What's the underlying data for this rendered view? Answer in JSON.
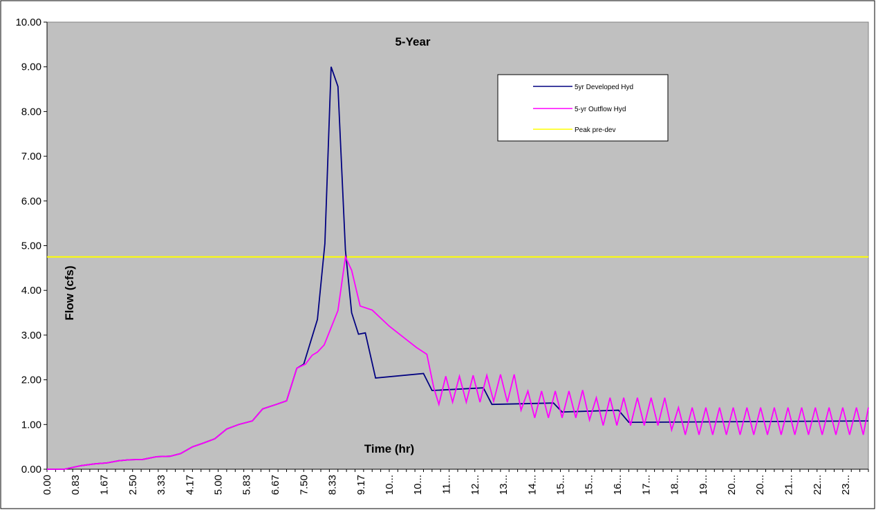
{
  "chart_data": {
    "type": "line",
    "title": "5-Year",
    "xlabel": "Time (hr)",
    "ylabel": "Flow (cfs)",
    "ylim": [
      0,
      10
    ],
    "yticks": [
      "0.00",
      "1.00",
      "2.00",
      "3.00",
      "4.00",
      "5.00",
      "6.00",
      "7.00",
      "8.00",
      "9.00",
      "10.00"
    ],
    "xlim": [
      0,
      24
    ],
    "xticks": [
      {
        "x": 0.0,
        "label": "0.00"
      },
      {
        "x": 0.83,
        "label": "0.83"
      },
      {
        "x": 1.67,
        "label": "1.67"
      },
      {
        "x": 2.5,
        "label": "2.50"
      },
      {
        "x": 3.33,
        "label": "3.33"
      },
      {
        "x": 4.17,
        "label": "4.17"
      },
      {
        "x": 5.0,
        "label": "5.00"
      },
      {
        "x": 5.83,
        "label": "5.83"
      },
      {
        "x": 6.67,
        "label": "6.67"
      },
      {
        "x": 7.5,
        "label": "7.50"
      },
      {
        "x": 8.33,
        "label": "8.33"
      },
      {
        "x": 9.17,
        "label": "9.17"
      },
      {
        "x": 10.0,
        "label": "10..."
      },
      {
        "x": 10.83,
        "label": "10..."
      },
      {
        "x": 11.67,
        "label": "11..."
      },
      {
        "x": 12.5,
        "label": "12..."
      },
      {
        "x": 13.33,
        "label": "13..."
      },
      {
        "x": 14.17,
        "label": "14..."
      },
      {
        "x": 15.0,
        "label": "15..."
      },
      {
        "x": 15.83,
        "label": "15..."
      },
      {
        "x": 16.67,
        "label": "16..."
      },
      {
        "x": 17.5,
        "label": "17..."
      },
      {
        "x": 18.33,
        "label": "18..."
      },
      {
        "x": 19.17,
        "label": "19..."
      },
      {
        "x": 20.0,
        "label": "20..."
      },
      {
        "x": 20.83,
        "label": "20..."
      },
      {
        "x": 21.67,
        "label": "21..."
      },
      {
        "x": 22.5,
        "label": "22..."
      },
      {
        "x": 23.33,
        "label": "23..."
      }
    ],
    "grid": false,
    "legend_position": "top-right",
    "series": [
      {
        "name": "5yr Developed Hyd",
        "color": "#000080",
        "points": [
          [
            0.0,
            0.0
          ],
          [
            0.5,
            0.0
          ],
          [
            0.75,
            0.04
          ],
          [
            1.0,
            0.08
          ],
          [
            1.4,
            0.12
          ],
          [
            1.75,
            0.14
          ],
          [
            2.1,
            0.19
          ],
          [
            2.4,
            0.21
          ],
          [
            2.8,
            0.22
          ],
          [
            3.2,
            0.28
          ],
          [
            3.6,
            0.29
          ],
          [
            3.9,
            0.35
          ],
          [
            4.25,
            0.5
          ],
          [
            4.55,
            0.58
          ],
          [
            4.9,
            0.68
          ],
          [
            5.25,
            0.9
          ],
          [
            5.6,
            1.0
          ],
          [
            6.0,
            1.08
          ],
          [
            6.3,
            1.35
          ],
          [
            6.7,
            1.45
          ],
          [
            7.0,
            1.53
          ],
          [
            7.3,
            2.26
          ],
          [
            7.5,
            2.35
          ],
          [
            7.9,
            3.35
          ],
          [
            8.12,
            5.05
          ],
          [
            8.3,
            9.0
          ],
          [
            8.5,
            8.56
          ],
          [
            8.72,
            4.9
          ],
          [
            8.9,
            3.5
          ],
          [
            9.1,
            3.02
          ],
          [
            9.3,
            3.05
          ],
          [
            9.6,
            2.04
          ],
          [
            11.0,
            2.14
          ],
          [
            11.25,
            1.76
          ],
          [
            12.75,
            1.82
          ],
          [
            13.0,
            1.45
          ],
          [
            14.8,
            1.48
          ],
          [
            15.05,
            1.28
          ],
          [
            16.7,
            1.32
          ],
          [
            17.0,
            1.05
          ],
          [
            24.0,
            1.08
          ]
        ]
      },
      {
        "name": "5-yr Outflow Hyd",
        "color": "#FF00FF",
        "points": [
          [
            0.0,
            0.0
          ],
          [
            0.5,
            0.0
          ],
          [
            0.75,
            0.04
          ],
          [
            1.0,
            0.08
          ],
          [
            1.4,
            0.12
          ],
          [
            1.75,
            0.14
          ],
          [
            2.1,
            0.19
          ],
          [
            2.4,
            0.21
          ],
          [
            2.8,
            0.22
          ],
          [
            3.2,
            0.28
          ],
          [
            3.6,
            0.29
          ],
          [
            3.9,
            0.35
          ],
          [
            4.25,
            0.5
          ],
          [
            4.55,
            0.58
          ],
          [
            4.9,
            0.68
          ],
          [
            5.25,
            0.9
          ],
          [
            5.6,
            1.0
          ],
          [
            6.0,
            1.08
          ],
          [
            6.3,
            1.35
          ],
          [
            6.7,
            1.45
          ],
          [
            7.0,
            1.53
          ],
          [
            7.3,
            2.26
          ],
          [
            7.55,
            2.35
          ],
          [
            7.75,
            2.55
          ],
          [
            7.9,
            2.62
          ],
          [
            8.1,
            2.78
          ],
          [
            8.5,
            3.55
          ],
          [
            8.72,
            4.75
          ],
          [
            8.9,
            4.45
          ],
          [
            9.15,
            3.65
          ],
          [
            9.5,
            3.56
          ],
          [
            10.0,
            3.2
          ],
          [
            10.5,
            2.9
          ],
          [
            10.8,
            2.72
          ],
          [
            11.1,
            2.57
          ],
          [
            11.3,
            1.82
          ],
          [
            11.45,
            1.45
          ],
          [
            11.65,
            2.08
          ],
          [
            11.85,
            1.5
          ],
          [
            12.05,
            2.08
          ],
          [
            12.25,
            1.5
          ],
          [
            12.45,
            2.1
          ],
          [
            12.65,
            1.5
          ],
          [
            12.85,
            2.1
          ],
          [
            13.05,
            1.52
          ],
          [
            13.25,
            2.12
          ],
          [
            13.45,
            1.5
          ],
          [
            13.65,
            2.12
          ],
          [
            13.85,
            1.32
          ],
          [
            14.05,
            1.75
          ],
          [
            14.25,
            1.15
          ],
          [
            14.45,
            1.75
          ],
          [
            14.65,
            1.15
          ],
          [
            14.85,
            1.75
          ],
          [
            15.05,
            1.15
          ],
          [
            15.25,
            1.75
          ],
          [
            15.45,
            1.15
          ],
          [
            15.65,
            1.77
          ],
          [
            15.85,
            1.1
          ],
          [
            16.05,
            1.6
          ],
          [
            16.25,
            0.98
          ],
          [
            16.45,
            1.6
          ],
          [
            16.65,
            0.98
          ],
          [
            16.85,
            1.6
          ],
          [
            17.05,
            0.98
          ],
          [
            17.25,
            1.6
          ],
          [
            17.45,
            0.98
          ],
          [
            17.65,
            1.6
          ],
          [
            17.85,
            0.98
          ],
          [
            18.05,
            1.6
          ],
          [
            18.25,
            0.88
          ],
          [
            18.45,
            1.38
          ],
          [
            18.65,
            0.77
          ],
          [
            18.85,
            1.38
          ],
          [
            19.05,
            0.77
          ],
          [
            19.25,
            1.38
          ],
          [
            19.45,
            0.77
          ],
          [
            19.65,
            1.38
          ],
          [
            19.85,
            0.77
          ],
          [
            20.05,
            1.38
          ],
          [
            20.25,
            0.77
          ],
          [
            20.45,
            1.38
          ],
          [
            20.65,
            0.77
          ],
          [
            20.85,
            1.38
          ],
          [
            21.05,
            0.77
          ],
          [
            21.25,
            1.38
          ],
          [
            21.45,
            0.77
          ],
          [
            21.65,
            1.38
          ],
          [
            21.85,
            0.77
          ],
          [
            22.05,
            1.38
          ],
          [
            22.25,
            0.77
          ],
          [
            22.45,
            1.38
          ],
          [
            22.65,
            0.77
          ],
          [
            22.85,
            1.38
          ],
          [
            23.05,
            0.77
          ],
          [
            23.25,
            1.38
          ],
          [
            23.45,
            0.77
          ],
          [
            23.65,
            1.38
          ],
          [
            23.85,
            0.77
          ],
          [
            24.0,
            1.38
          ]
        ]
      },
      {
        "name": "Peak pre-dev",
        "color": "#FFFF00",
        "points": [
          [
            0.0,
            4.75
          ],
          [
            24.0,
            4.75
          ]
        ]
      }
    ]
  },
  "colors": {
    "plot_background": "#C0C0C0",
    "page_background": "#FFFFFF"
  }
}
